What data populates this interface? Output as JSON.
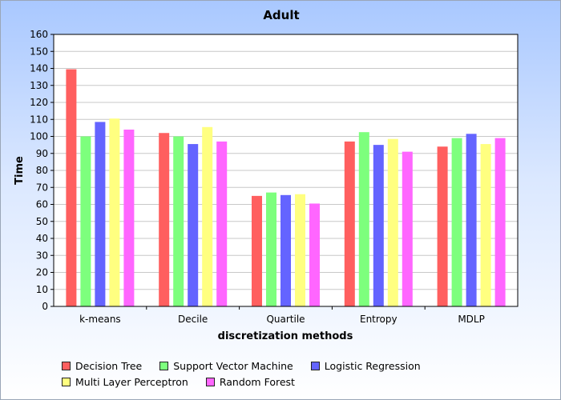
{
  "chart_data": {
    "type": "bar",
    "title": "Adult",
    "xlabel": "discretization methods",
    "ylabel": "Time",
    "ylim": [
      0,
      160
    ],
    "ytick_step": 10,
    "grid": true,
    "legend_position": "bottom",
    "categories": [
      "k-means",
      "Decile",
      "Quartile",
      "Entropy",
      "MDLP"
    ],
    "series": [
      {
        "name": "Decision Tree",
        "color": "#ff5f5f",
        "values": [
          139.5,
          102,
          65,
          97,
          94
        ]
      },
      {
        "name": "Support Vector Machine",
        "color": "#7dff7d",
        "values": [
          100,
          100,
          67,
          102.5,
          99
        ]
      },
      {
        "name": "Logistic Regression",
        "color": "#6464ff",
        "values": [
          108.5,
          95.5,
          65.5,
          95,
          101.5
        ]
      },
      {
        "name": "Multi Layer Perceptron",
        "color": "#ffff80",
        "values": [
          110.5,
          105.5,
          66,
          98.5,
          95.5
        ]
      },
      {
        "name": "Random Forest",
        "color": "#ff66ff",
        "values": [
          104,
          97,
          60.5,
          91,
          99
        ]
      }
    ]
  }
}
